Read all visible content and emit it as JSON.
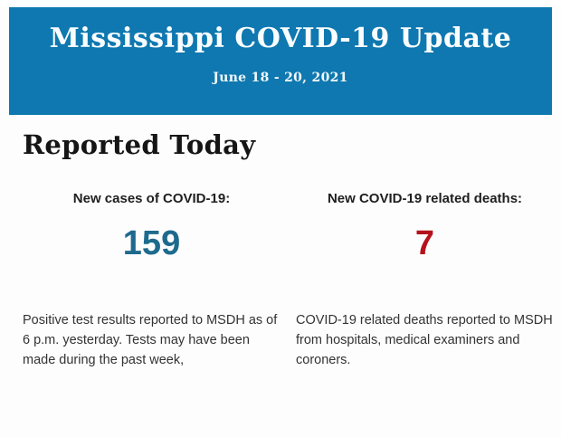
{
  "header": {
    "title": "Mississippi COVID-19 Update",
    "date_range": "June 18 - 20, 2021",
    "background_color": "#0f78b0"
  },
  "section": {
    "heading": "Reported Today"
  },
  "stats": {
    "cases": {
      "label": "New cases of COVID-19:",
      "value": "159",
      "value_color": "#1e6a8e",
      "description": "Positive test results reported to MSDH as of 6 p.m. yesterday. Tests may have been made during the past week,"
    },
    "deaths": {
      "label": "New COVID-19 related deaths:",
      "value": "7",
      "value_color": "#b5121b",
      "description": "COVID-19 related deaths reported to MSDH from hospitals, medical examiners and coroners."
    }
  }
}
